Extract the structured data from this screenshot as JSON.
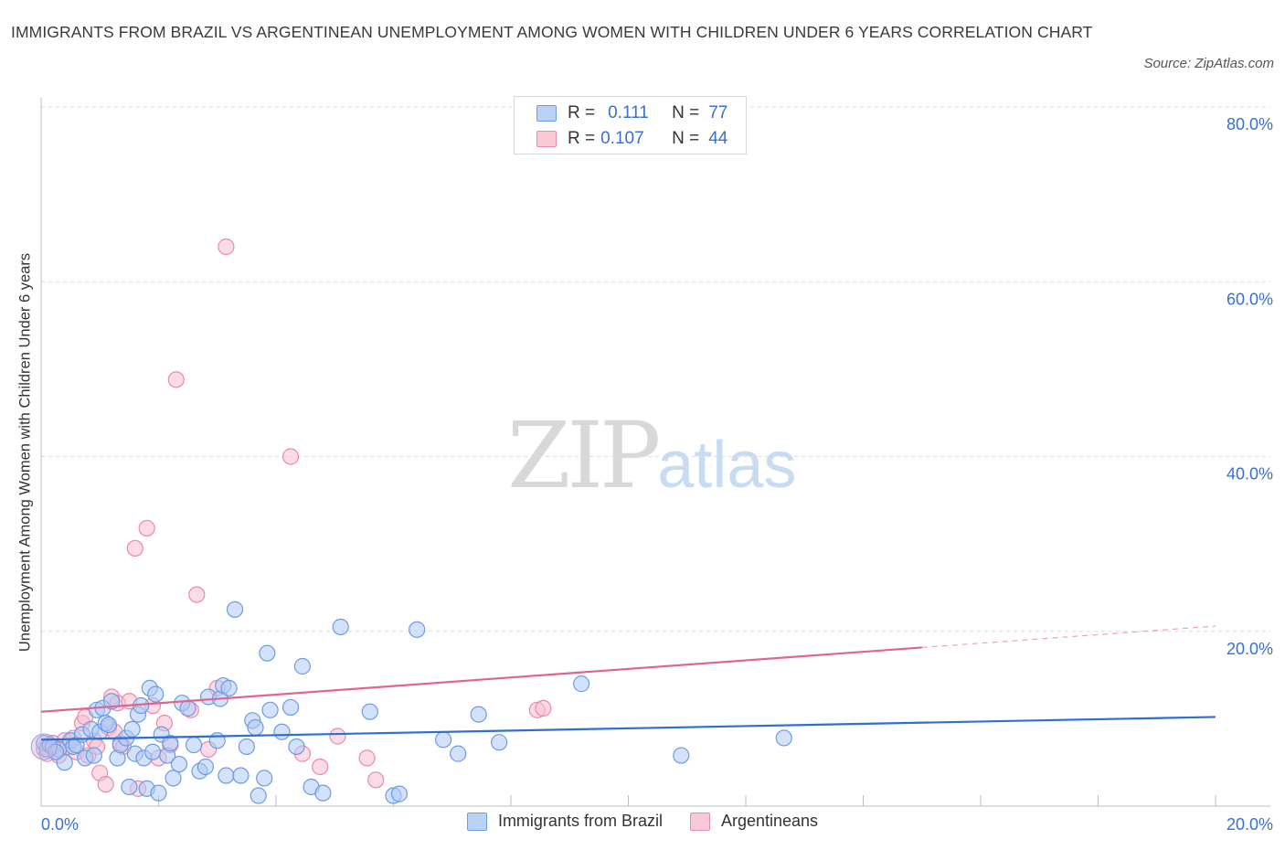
{
  "header": {
    "title": "IMMIGRANTS FROM BRAZIL VS ARGENTINEAN UNEMPLOYMENT AMONG WOMEN WITH CHILDREN UNDER 6 YEARS CORRELATION CHART",
    "source": "Source: ZipAtlas.com"
  },
  "watermark": {
    "zip": "ZIP",
    "atlas": "atlas"
  },
  "legend_top": {
    "r_label": "R =",
    "n_label": "N =",
    "rows": [
      {
        "r": "0.111",
        "n": "77"
      },
      {
        "r": "0.107",
        "n": "44"
      }
    ]
  },
  "colors": {
    "brazil_fill": "#aecbf5",
    "brazil_stroke": "#6d9be2",
    "brazil_line": "#2f6fd0",
    "arg_fill": "#f7c0d2",
    "arg_stroke": "#e98aaa",
    "arg_line": "#e0658e",
    "tick_text": "#3a6fd1",
    "grid": "#dcdcdc"
  },
  "chart_data": {
    "type": "scatter",
    "title": "IMMIGRANTS FROM BRAZIL VS ARGENTINEAN UNEMPLOYMENT AMONG WOMEN WITH CHILDREN UNDER 6 YEARS CORRELATION CHART",
    "xlabel": "",
    "ylabel": "Unemployment Among Women with Children Under 6 years",
    "xlim": [
      0,
      20
    ],
    "ylim": [
      0,
      80
    ],
    "x_tick_labels": [
      "0.0%",
      "20.0%"
    ],
    "y_tick_labels": [
      "20.0%",
      "40.0%",
      "60.0%",
      "80.0%"
    ],
    "y_ticks": [
      20,
      40,
      60,
      80
    ],
    "grid": "horizontal dashed",
    "legend_position": "top-center",
    "series": [
      {
        "name": "Immigrants from Brazil",
        "R": 0.111,
        "N": 77,
        "trend": {
          "x": [
            0,
            20
          ],
          "y": [
            7.6,
            10.2
          ],
          "dashed_from": null
        },
        "points": [
          [
            0.05,
            7.2
          ],
          [
            0.1,
            6.5
          ],
          [
            0.15,
            7.0
          ],
          [
            0.2,
            6.8
          ],
          [
            0.3,
            6.5
          ],
          [
            0.4,
            5.0
          ],
          [
            0.5,
            7.5
          ],
          [
            0.55,
            6.8
          ],
          [
            0.6,
            7.0
          ],
          [
            0.7,
            8.2
          ],
          [
            0.75,
            5.5
          ],
          [
            0.85,
            8.8
          ],
          [
            0.95,
            11.0
          ],
          [
            1.0,
            8.5
          ],
          [
            1.05,
            11.2
          ],
          [
            1.1,
            9.5
          ],
          [
            1.15,
            9.3
          ],
          [
            1.2,
            12.0
          ],
          [
            1.3,
            5.5
          ],
          [
            1.35,
            7.0
          ],
          [
            1.45,
            7.8
          ],
          [
            1.5,
            2.2
          ],
          [
            1.55,
            8.8
          ],
          [
            1.6,
            6.0
          ],
          [
            1.65,
            10.5
          ],
          [
            1.7,
            11.5
          ],
          [
            1.75,
            5.5
          ],
          [
            1.8,
            2.0
          ],
          [
            1.85,
            13.5
          ],
          [
            1.9,
            6.2
          ],
          [
            1.95,
            12.8
          ],
          [
            2.0,
            1.5
          ],
          [
            2.05,
            8.2
          ],
          [
            2.15,
            5.8
          ],
          [
            2.2,
            7.2
          ],
          [
            2.25,
            3.2
          ],
          [
            2.35,
            4.8
          ],
          [
            2.4,
            11.8
          ],
          [
            2.5,
            11.2
          ],
          [
            2.6,
            7.0
          ],
          [
            2.7,
            4.0
          ],
          [
            2.8,
            4.5
          ],
          [
            2.85,
            12.5
          ],
          [
            3.0,
            7.5
          ],
          [
            3.05,
            12.3
          ],
          [
            3.1,
            13.8
          ],
          [
            3.15,
            3.5
          ],
          [
            3.2,
            13.5
          ],
          [
            3.3,
            22.5
          ],
          [
            3.4,
            3.5
          ],
          [
            3.5,
            6.8
          ],
          [
            3.6,
            9.8
          ],
          [
            3.65,
            9.0
          ],
          [
            3.7,
            1.2
          ],
          [
            3.8,
            3.2
          ],
          [
            3.85,
            17.5
          ],
          [
            3.9,
            11.0
          ],
          [
            4.1,
            8.5
          ],
          [
            4.25,
            11.3
          ],
          [
            4.35,
            6.8
          ],
          [
            4.45,
            16.0
          ],
          [
            4.6,
            2.2
          ],
          [
            4.8,
            1.5
          ],
          [
            5.1,
            20.5
          ],
          [
            5.6,
            10.8
          ],
          [
            6.0,
            1.2
          ],
          [
            6.1,
            1.4
          ],
          [
            6.4,
            20.2
          ],
          [
            6.85,
            7.6
          ],
          [
            7.1,
            6.0
          ],
          [
            7.45,
            10.5
          ],
          [
            7.8,
            7.3
          ],
          [
            9.2,
            14.0
          ],
          [
            10.9,
            5.8
          ],
          [
            12.65,
            7.8
          ],
          [
            0.25,
            6.2
          ],
          [
            0.9,
            5.8
          ]
        ]
      },
      {
        "name": "Argentineans",
        "R": 0.107,
        "N": 44,
        "trend": {
          "x": [
            0,
            20
          ],
          "y": [
            10.8,
            20.6
          ],
          "dashed_from": 15
        },
        "points": [
          [
            0.05,
            6.5
          ],
          [
            0.1,
            6.0
          ],
          [
            0.2,
            7.2
          ],
          [
            0.25,
            6.8
          ],
          [
            0.3,
            5.8
          ],
          [
            0.4,
            7.5
          ],
          [
            0.45,
            6.8
          ],
          [
            0.55,
            7.8
          ],
          [
            0.6,
            6.2
          ],
          [
            0.7,
            9.5
          ],
          [
            0.75,
            10.2
          ],
          [
            0.8,
            5.8
          ],
          [
            0.9,
            7.5
          ],
          [
            0.95,
            6.8
          ],
          [
            1.0,
            3.8
          ],
          [
            1.1,
            2.5
          ],
          [
            1.15,
            9.0
          ],
          [
            1.2,
            12.5
          ],
          [
            1.25,
            8.5
          ],
          [
            1.3,
            11.8
          ],
          [
            1.35,
            7.2
          ],
          [
            1.4,
            6.8
          ],
          [
            1.5,
            12.0
          ],
          [
            1.6,
            29.5
          ],
          [
            1.65,
            2.0
          ],
          [
            1.8,
            31.8
          ],
          [
            1.9,
            11.5
          ],
          [
            2.0,
            5.5
          ],
          [
            2.1,
            9.5
          ],
          [
            2.2,
            7.0
          ],
          [
            2.3,
            48.8
          ],
          [
            2.55,
            11.0
          ],
          [
            2.65,
            24.2
          ],
          [
            2.85,
            6.5
          ],
          [
            3.0,
            13.5
          ],
          [
            3.15,
            64.0
          ],
          [
            4.25,
            40.0
          ],
          [
            4.45,
            6.0
          ],
          [
            4.75,
            4.5
          ],
          [
            5.05,
            8.0
          ],
          [
            5.55,
            5.5
          ],
          [
            5.7,
            3.0
          ],
          [
            8.45,
            11.0
          ],
          [
            8.55,
            11.2
          ]
        ]
      }
    ]
  },
  "legend_bottom": {
    "items": [
      "Immigrants from Brazil",
      "Argentineans"
    ]
  }
}
